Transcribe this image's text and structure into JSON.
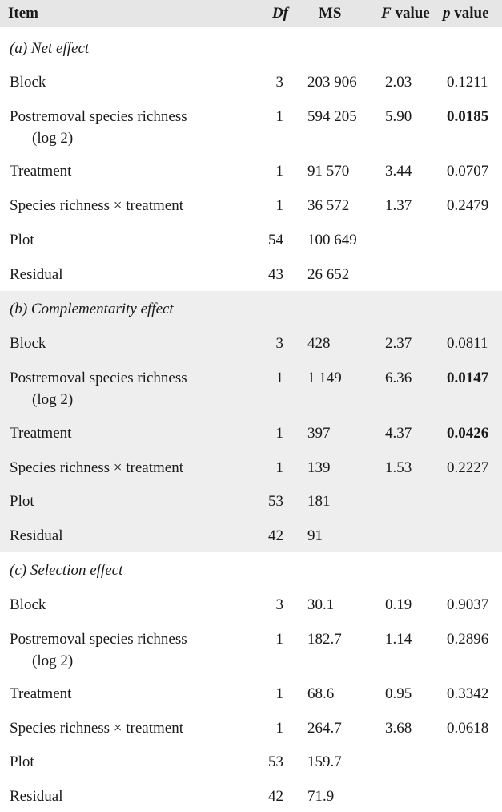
{
  "header": {
    "item": "Item",
    "df": "Df",
    "ms": "MS",
    "f_value_italic": "F",
    "f_value_rest": " value",
    "p_value_italic": "p",
    "p_value_rest": " value"
  },
  "sections": [
    {
      "title": "(a) Net effect",
      "rows": [
        {
          "item": "Block",
          "df": "3",
          "ms": "203 906",
          "f": "2.03",
          "p": "0.1211"
        },
        {
          "item": "Postremoval species richness",
          "item2": "(log 2)",
          "df": "1",
          "ms": "594 205",
          "f": "5.90",
          "p": "0.0185"
        },
        {
          "item": "Treatment",
          "df": "1",
          "ms": "91 570",
          "f": "3.44",
          "p": "0.0707"
        },
        {
          "item": "Species richness × treatment",
          "df": "1",
          "ms": "36 572",
          "f": "1.37",
          "p": "0.2479"
        },
        {
          "item": "Plot",
          "df": "54",
          "ms": "100 649"
        },
        {
          "item": "Residual",
          "df": "43",
          "ms": "26 652"
        }
      ]
    },
    {
      "title": "(b) Complementarity effect",
      "rows": [
        {
          "item": "Block",
          "df": "3",
          "ms": "428",
          "f": "2.37",
          "p": "0.0811"
        },
        {
          "item": "Postremoval species richness",
          "item2": "(log 2)",
          "df": "1",
          "ms": "1 149",
          "f": "6.36",
          "p": "0.0147"
        },
        {
          "item": "Treatment",
          "df": "1",
          "ms": "397",
          "f": "4.37",
          "p": "0.0426"
        },
        {
          "item": "Species richness × treatment",
          "df": "1",
          "ms": "139",
          "f": "1.53",
          "p": "0.2227"
        },
        {
          "item": "Plot",
          "df": "53",
          "ms": "181"
        },
        {
          "item": "Residual",
          "df": "42",
          "ms": "91"
        }
      ]
    },
    {
      "title": "(c) Selection effect",
      "rows": [
        {
          "item": "Block",
          "df": "3",
          "ms": "30.1",
          "f": "0.19",
          "p": "0.9037"
        },
        {
          "item": "Postremoval species richness",
          "item2": "(log 2)",
          "df": "1",
          "ms": "182.7",
          "f": "1.14",
          "p": "0.2896"
        },
        {
          "item": "Treatment",
          "df": "1",
          "ms": "68.6",
          "f": "0.95",
          "p": "0.3342"
        },
        {
          "item": "Species richness × treatment",
          "df": "1",
          "ms": "264.7",
          "f": "3.68",
          "p": "0.0618"
        },
        {
          "item": "Plot",
          "df": "53",
          "ms": "159.7"
        },
        {
          "item": "Residual",
          "df": "42",
          "ms": "71.9"
        }
      ]
    }
  ]
}
